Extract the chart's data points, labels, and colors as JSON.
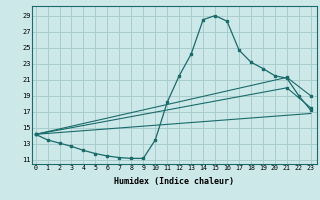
{
  "xlabel": "Humidex (Indice chaleur)",
  "bg_color": "#cde8e8",
  "grid_color": "#a8cccc",
  "line_color": "#1a6b6b",
  "x_ticks": [
    0,
    1,
    2,
    3,
    4,
    5,
    6,
    7,
    8,
    9,
    10,
    11,
    12,
    13,
    14,
    15,
    16,
    17,
    18,
    19,
    20,
    21,
    22,
    23
  ],
  "y_ticks": [
    11,
    13,
    15,
    17,
    19,
    21,
    23,
    25,
    27,
    29
  ],
  "xlim": [
    -0.3,
    23.5
  ],
  "ylim": [
    10.5,
    30.2
  ],
  "line1_x": [
    0,
    1,
    2,
    3,
    4,
    5,
    6,
    7,
    8,
    9,
    10,
    11,
    12,
    13,
    14,
    15,
    16,
    17,
    18,
    19,
    20,
    21,
    22,
    23
  ],
  "line1_y": [
    14.2,
    13.5,
    13.1,
    12.7,
    12.2,
    11.8,
    11.5,
    11.3,
    11.2,
    11.2,
    13.5,
    18.2,
    21.5,
    24.2,
    28.5,
    29.0,
    28.3,
    24.7,
    23.2,
    22.4,
    21.5,
    21.2,
    19.0,
    17.2
  ],
  "line2_x": [
    0,
    21,
    23
  ],
  "line2_y": [
    14.2,
    21.3,
    19.0
  ],
  "line3_x": [
    0,
    21,
    23
  ],
  "line3_y": [
    14.2,
    20.0,
    17.5
  ],
  "line4_x": [
    0,
    23
  ],
  "line4_y": [
    14.2,
    16.8
  ]
}
